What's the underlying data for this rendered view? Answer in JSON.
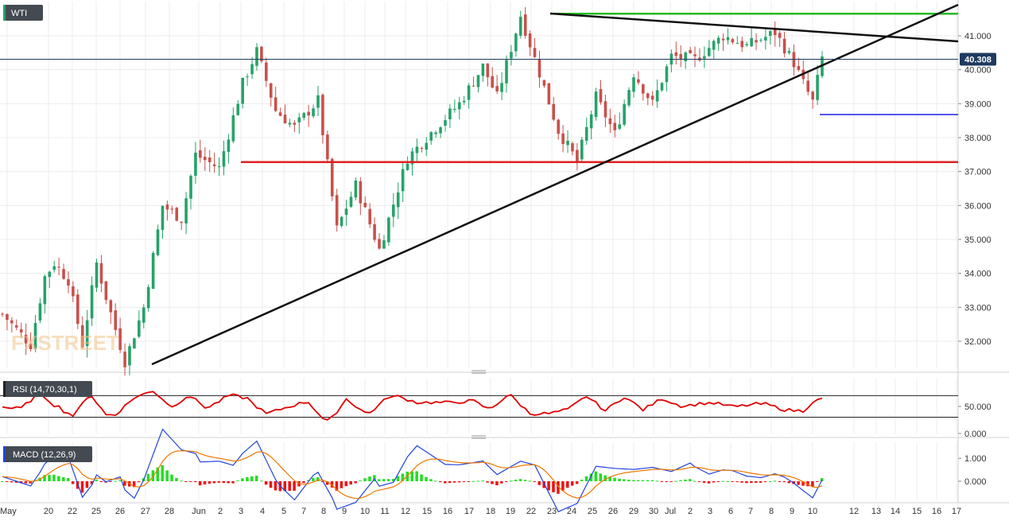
{
  "colors": {
    "up": "#26a269",
    "down": "#c8504c",
    "grid": "#ececec",
    "axis_text": "#333333",
    "trendline": "#111111",
    "resistance": "#22bb22",
    "support_red": "#e02020",
    "support_blue": "#5555ee",
    "rsi_line": "#e00000",
    "macd_line": "#2244dd",
    "signal_line": "#ee7700",
    "hist_pos": "#22dd22",
    "hist_neg": "#ee1111",
    "price_tag_bg": "#1e3a5f"
  },
  "chart_data": {
    "type": "candlestick",
    "title": "WTI",
    "y_ticks": [
      "32.000",
      "33.000",
      "34.000",
      "35.000",
      "36.000",
      "37.000",
      "38.000",
      "39.000",
      "40.000",
      "41.000"
    ],
    "ylim": [
      31.4,
      41.8
    ],
    "current_price": "40.308",
    "current_price_value": 40.308,
    "levels": {
      "resistance_green": 41.65,
      "support_red": 37.28,
      "support_blue": 38.68
    },
    "x_labels": [
      "May",
      "20",
      "22",
      "25",
      "26",
      "27",
      "28",
      "Jun",
      "2",
      "3",
      "4",
      "5",
      "7",
      "8",
      "9",
      "10",
      "11",
      "12",
      "15",
      "16",
      "17",
      "18",
      "19",
      "22",
      "23",
      "24",
      "25",
      "26",
      "29",
      "30",
      "Jul",
      "2",
      "3",
      "6",
      "7",
      "8",
      "9",
      "10",
      "12",
      "13",
      "14",
      "15",
      "16",
      "17"
    ],
    "rsi": {
      "label": "RSI (14,70,30,1)",
      "ticks": [
        "50.000",
        "0.000"
      ],
      "ylim": [
        0,
        100
      ],
      "upper": 70,
      "lower": 30
    },
    "macd": {
      "label": "MACD (12,26,9)",
      "ticks": [
        "1.000",
        "0.000"
      ],
      "ylim": [
        -0.8,
        1.7
      ]
    }
  }
}
